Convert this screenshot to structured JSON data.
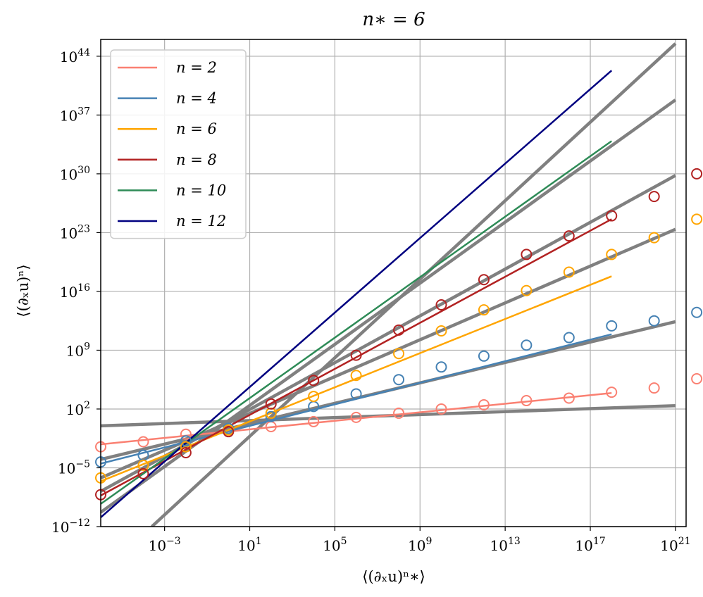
{
  "chart_data": {
    "type": "line",
    "title": "n∗ = 6",
    "xlabel": "⟨(∂ₓu)ⁿ∗⟩",
    "ylabel": "⟨(∂ₓu)ⁿ⟩",
    "xscale": "log",
    "yscale": "log",
    "xlim_log10": [
      -6,
      21.5
    ],
    "ylim_log10": [
      -12,
      46
    ],
    "grid": true,
    "legend_position": "top-left",
    "x_ticks": [
      {
        "log": -3,
        "base": "10",
        "exp": "−3"
      },
      {
        "log": 1,
        "base": "10",
        "exp": "1"
      },
      {
        "log": 5,
        "base": "10",
        "exp": "5"
      },
      {
        "log": 9,
        "base": "10",
        "exp": "9"
      },
      {
        "log": 13,
        "base": "10",
        "exp": "13"
      },
      {
        "log": 17,
        "base": "10",
        "exp": "17"
      },
      {
        "log": 21,
        "base": "10",
        "exp": "21"
      }
    ],
    "y_ticks": [
      {
        "log": -12,
        "base": "10",
        "exp": "−12"
      },
      {
        "log": -5,
        "base": "10",
        "exp": "−5"
      },
      {
        "log": 2,
        "base": "10",
        "exp": "2"
      },
      {
        "log": 9,
        "base": "10",
        "exp": "9"
      },
      {
        "log": 16,
        "base": "10",
        "exp": "16"
      },
      {
        "log": 23,
        "base": "10",
        "exp": "23"
      },
      {
        "log": 30,
        "base": "10",
        "exp": "30"
      },
      {
        "log": 37,
        "base": "10",
        "exp": "37"
      },
      {
        "log": 44,
        "base": "10",
        "exp": "44"
      }
    ],
    "series": [
      {
        "name": "n = 2",
        "color": "#fa8072",
        "line_log10_x": [
          -6,
          18
        ],
        "line_log10_y": [
          -2.2,
          3.9
        ],
        "markers_log10_x": [
          -6,
          -4,
          -2,
          0,
          2,
          4,
          6,
          8,
          10,
          12,
          14,
          16,
          18,
          20,
          22
        ],
        "markers_log10_y": [
          -2.5,
          -1.9,
          -1.0,
          -0.5,
          -0.1,
          0.5,
          1.0,
          1.5,
          2.0,
          2.5,
          3.0,
          3.3,
          4.0,
          4.5,
          5.6
        ]
      },
      {
        "name": "n = 4",
        "color": "#4682b4",
        "line_log10_x": [
          -6,
          18
        ],
        "line_log10_y": [
          -4.5,
          10.9
        ],
        "markers_log10_x": [
          -6,
          -4,
          -2,
          0,
          2,
          4,
          6,
          8,
          10,
          12,
          14,
          16,
          18,
          20,
          22
        ],
        "markers_log10_y": [
          -4.3,
          -3.5,
          -1.8,
          -0.3,
          1.1,
          2.3,
          3.8,
          5.5,
          7.0,
          8.3,
          9.6,
          10.5,
          11.9,
          12.5,
          13.5
        ]
      },
      {
        "name": "n = 6",
        "color": "#ffa500",
        "line_log10_x": [
          -6,
          18
        ],
        "line_log10_y": [
          -6.6,
          17.8
        ],
        "markers_log10_x": [
          -6,
          -4,
          -2,
          0,
          2,
          4,
          6,
          8,
          10,
          12,
          14,
          16,
          18,
          20,
          22
        ],
        "markers_log10_y": [
          -6.2,
          -4.7,
          -2.5,
          -0.5,
          1.5,
          3.5,
          6.0,
          8.6,
          11.3,
          13.8,
          16.1,
          18.3,
          20.4,
          22.4,
          24.6
        ]
      },
      {
        "name": "n = 8",
        "color": "#b22222",
        "line_log10_x": [
          -6,
          18
        ],
        "line_log10_y": [
          -8.3,
          24.6
        ],
        "markers_log10_x": [
          -6,
          -4,
          -2,
          0,
          2,
          4,
          6,
          8,
          10,
          12,
          14,
          16,
          18,
          20,
          22
        ],
        "markers_log10_y": [
          -8.2,
          -5.7,
          -3.2,
          -0.7,
          2.6,
          5.4,
          8.4,
          11.4,
          14.4,
          17.4,
          20.4,
          22.6,
          25.0,
          27.3,
          30.0
        ]
      },
      {
        "name": "n = 10",
        "color": "#2e8b57",
        "line_log10_x": [
          -6,
          18
        ],
        "line_log10_y": [
          -9.3,
          33.9
        ],
        "markers_log10_x": [],
        "markers_log10_y": []
      },
      {
        "name": "n = 12",
        "color": "#000080",
        "line_log10_x": [
          -6,
          18
        ],
        "line_log10_y": [
          -10.9,
          42.3
        ],
        "markers_log10_x": [],
        "markers_log10_y": []
      }
    ],
    "reference_lines": {
      "color": "#808080",
      "segments": [
        {
          "x_log10": [
            -6,
            21
          ],
          "y_log10": [
            0.0,
            2.4
          ]
        },
        {
          "x_log10": [
            -6,
            21
          ],
          "y_log10": [
            -4.0,
            12.4
          ]
        },
        {
          "x_log10": [
            -6,
            21
          ],
          "y_log10": [
            -6.2,
            23.4
          ]
        },
        {
          "x_log10": [
            -6,
            21
          ],
          "y_log10": [
            -7.8,
            29.8
          ]
        },
        {
          "x_log10": [
            -6,
            21
          ],
          "y_log10": [
            -10.3,
            38.8
          ]
        },
        {
          "x_log10": [
            -3.6,
            21
          ],
          "y_log10": [
            -12.0,
            45.5
          ]
        }
      ]
    }
  }
}
